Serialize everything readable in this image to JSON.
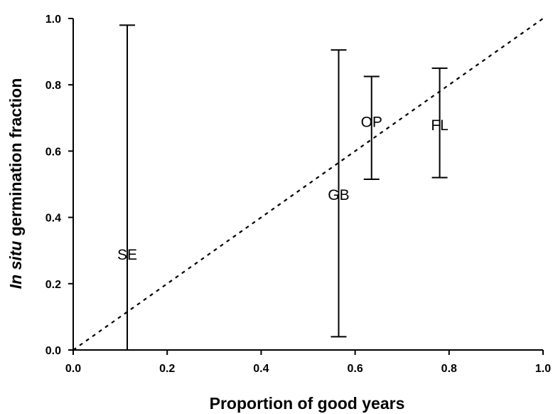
{
  "chart_data": {
    "type": "scatter",
    "xlabel": "Proportion of good years",
    "ylabel_italic": "In situ",
    "ylabel_rest": " germination fraction",
    "xlim": [
      0.0,
      1.0
    ],
    "ylim": [
      0.0,
      1.0
    ],
    "x_ticks": [
      "0.0",
      "0.2",
      "0.4",
      "0.6",
      "0.8",
      "1.0"
    ],
    "y_ticks": [
      "0.0",
      "0.2",
      "0.4",
      "0.6",
      "0.8",
      "1.0"
    ],
    "grid": false,
    "legend": "none",
    "reference_line": {
      "style": "dotted",
      "from": [
        0.0,
        0.0
      ],
      "to": [
        1.0,
        1.0
      ]
    },
    "points": [
      {
        "label": "SE",
        "x": 0.115,
        "y": 0.29,
        "ylow": 0.0,
        "yhigh": 0.98
      },
      {
        "label": "GB",
        "x": 0.565,
        "y": 0.47,
        "ylow": 0.04,
        "yhigh": 0.905
      },
      {
        "label": "OP",
        "x": 0.635,
        "y": 0.69,
        "ylow": 0.515,
        "yhigh": 0.825
      },
      {
        "label": "FL",
        "x": 0.78,
        "y": 0.68,
        "ylow": 0.52,
        "yhigh": 0.85
      }
    ]
  }
}
